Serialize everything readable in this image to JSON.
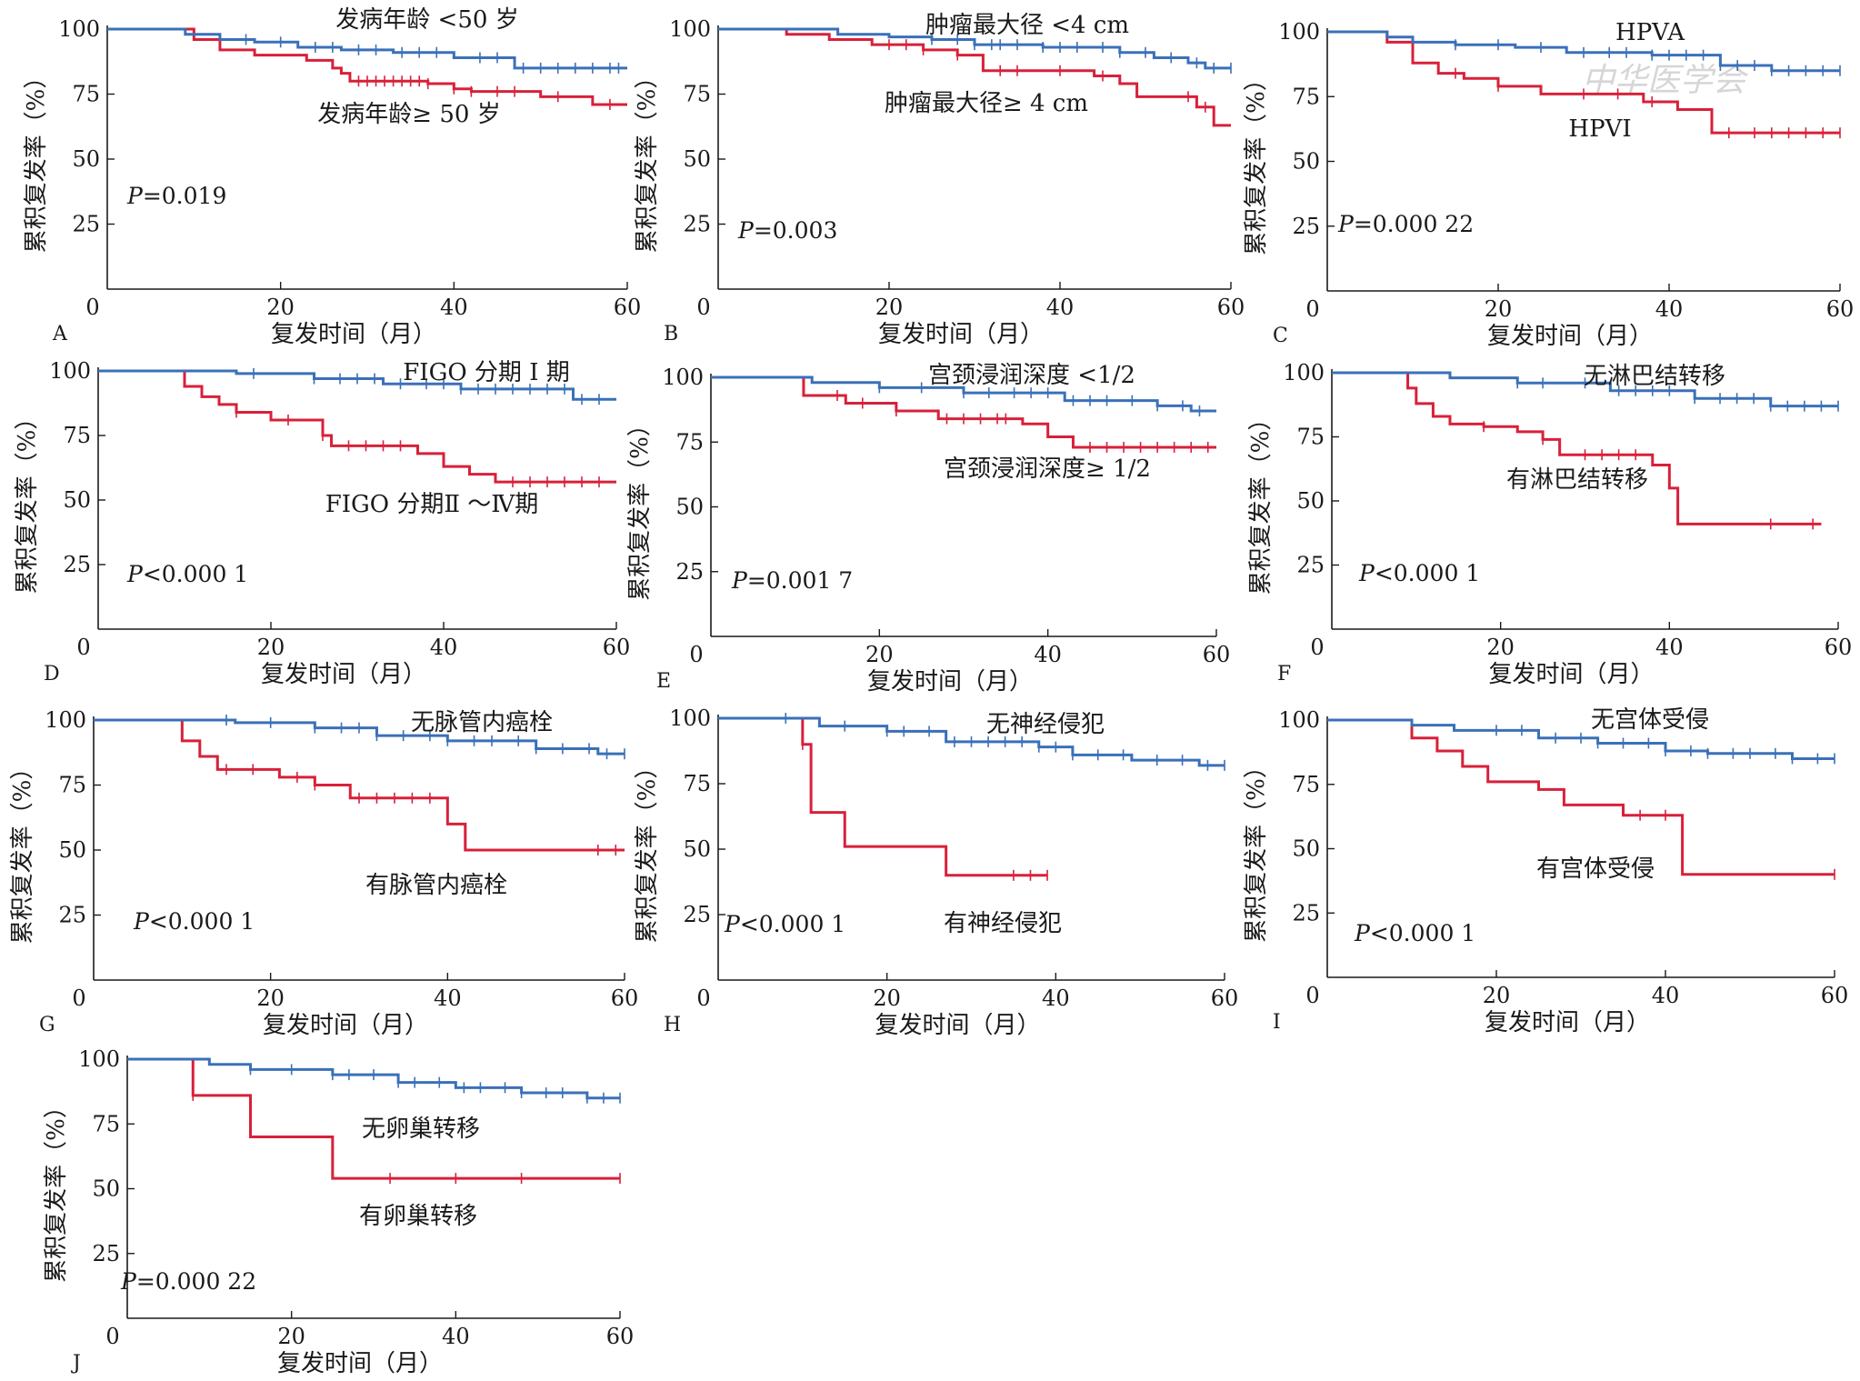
{
  "colors": {
    "favorable": "#3a70b8",
    "unfavorable": "#d8203a",
    "axis": "#1a1a1a"
  },
  "axes": {
    "x_ticks": [
      "0",
      "20",
      "40",
      "60"
    ],
    "y_ticks": [
      "25",
      "50",
      "75",
      "100"
    ],
    "xlabel": "复发时间（月）",
    "ylabel": "累积复发率（%）",
    "xlim": [
      0,
      60
    ],
    "ylim": [
      0,
      100
    ]
  },
  "watermark": "中华医学会",
  "chart_data": [
    {
      "type": "line",
      "letter": "A",
      "p_value": "=0.019",
      "series": [
        {
          "name": "发病年龄 <50 岁",
          "color": "#3a70b8",
          "x": [
            0,
            8,
            9,
            13,
            17,
            22,
            27,
            33,
            40,
            47,
            60
          ],
          "y": [
            100,
            100,
            98,
            96,
            95,
            93,
            92,
            91,
            89,
            85,
            85
          ],
          "censor": [
            16,
            20,
            24,
            26,
            29,
            31,
            34,
            36,
            38,
            43,
            45,
            48,
            50,
            52,
            54,
            56,
            58,
            59
          ]
        },
        {
          "name": "发病年龄≥ 50 岁",
          "color": "#d8203a",
          "x": [
            0,
            8,
            10,
            13,
            17,
            23,
            26,
            27,
            28,
            37,
            40,
            42,
            50,
            56,
            60
          ],
          "y": [
            100,
            100,
            96,
            92,
            90,
            88,
            85,
            83,
            80,
            79,
            77,
            76,
            74,
            71,
            71
          ],
          "censor": [
            29,
            30,
            31,
            32,
            33,
            34,
            35,
            36,
            37,
            40,
            42,
            45,
            47,
            52,
            58
          ]
        }
      ]
    },
    {
      "type": "line",
      "letter": "B",
      "p_value": "=0.003",
      "series": [
        {
          "name": "肿瘤最大径 <4 cm",
          "color": "#3a70b8",
          "x": [
            0,
            10,
            14,
            20,
            25,
            30,
            38,
            47,
            51,
            55,
            57,
            60
          ],
          "y": [
            100,
            100,
            98,
            97,
            96,
            94,
            93,
            91,
            89,
            87,
            85,
            85
          ],
          "censor": [
            25,
            28,
            30,
            32,
            33,
            35,
            38,
            40,
            42,
            45,
            47,
            50,
            53,
            56,
            58,
            60
          ]
        },
        {
          "name": "肿瘤最大径≥ 4 cm",
          "color": "#d8203a",
          "x": [
            0,
            4,
            8,
            13,
            18,
            24,
            28,
            31,
            44,
            47,
            49,
            56,
            58,
            60
          ],
          "y": [
            100,
            100,
            98,
            96,
            94,
            92,
            90,
            84,
            82,
            79,
            74,
            70,
            63,
            63
          ],
          "censor": [
            20,
            22,
            24,
            28,
            33,
            35,
            40,
            45,
            55,
            57
          ]
        }
      ]
    },
    {
      "type": "line",
      "letter": "C",
      "p_value": "=0.000 22",
      "series": [
        {
          "name": "HPVA",
          "color": "#3a70b8",
          "x": [
            0,
            5,
            7,
            10,
            15,
            22,
            28,
            38,
            46,
            52,
            60
          ],
          "y": [
            100,
            100,
            98,
            96,
            95,
            94,
            92,
            91,
            87,
            85,
            85
          ],
          "censor": [
            15,
            20,
            25,
            30,
            33,
            35,
            38,
            40,
            42,
            44,
            46,
            48,
            50,
            52,
            54,
            56,
            58,
            60
          ]
        },
        {
          "name": "HPVI",
          "color": "#d8203a",
          "x": [
            0,
            5,
            7,
            10,
            13,
            16,
            20,
            25,
            37,
            41,
            45,
            60
          ],
          "y": [
            100,
            100,
            96,
            88,
            84,
            82,
            79,
            76,
            73,
            70,
            61,
            61
          ],
          "censor": [
            15,
            20,
            30,
            34,
            38,
            47,
            50,
            52,
            54,
            56,
            58,
            60
          ]
        }
      ]
    },
    {
      "type": "line",
      "letter": "D",
      "p_value": "<0.000 1",
      "series": [
        {
          "name": "FIGO 分期 Ⅰ 期",
          "color": "#3a70b8",
          "x": [
            0,
            9,
            16,
            25,
            33,
            42,
            55,
            60
          ],
          "y": [
            100,
            100,
            99,
            97,
            95,
            93,
            89,
            89
          ],
          "censor": [
            18,
            25,
            28,
            30,
            32,
            35,
            38,
            40,
            42,
            44,
            46,
            48,
            50,
            52,
            54,
            56,
            58
          ]
        },
        {
          "name": "FIGO 分期Ⅱ ～Ⅳ期",
          "color": "#d8203a",
          "x": [
            0,
            8,
            10,
            12,
            14,
            16,
            20,
            26,
            27,
            37,
            40,
            43,
            46,
            60
          ],
          "y": [
            100,
            100,
            94,
            90,
            87,
            84,
            81,
            75,
            71,
            68,
            63,
            60,
            57,
            57
          ],
          "censor": [
            16,
            22,
            26,
            29,
            31,
            33,
            35,
            48,
            50,
            52,
            54,
            56,
            58
          ]
        }
      ]
    },
    {
      "type": "line",
      "letter": "E",
      "p_value": "=0.001 7",
      "series": [
        {
          "name": "宫颈浸润深度 <1/2",
          "color": "#3a70b8",
          "x": [
            0,
            7,
            12,
            20,
            30,
            42,
            53,
            57,
            60
          ],
          "y": [
            100,
            100,
            98,
            96,
            94,
            91,
            89,
            87,
            87
          ],
          "censor": [
            20,
            25,
            30,
            33,
            36,
            38,
            40,
            43,
            45,
            47,
            50,
            53,
            56,
            58
          ]
        },
        {
          "name": "宫颈浸润深度≥ 1/2",
          "color": "#d8203a",
          "x": [
            0,
            8,
            11,
            16,
            22,
            27,
            37,
            40,
            43,
            60
          ],
          "y": [
            100,
            100,
            93,
            90,
            87,
            84,
            82,
            77,
            73,
            73
          ],
          "censor": [
            15,
            18,
            22,
            28,
            30,
            32,
            34,
            35,
            45,
            47,
            49,
            51,
            53,
            55,
            57,
            59
          ]
        }
      ]
    },
    {
      "type": "line",
      "letter": "F",
      "p_value": "<0.000 1",
      "series": [
        {
          "name": "无淋巴结转移",
          "color": "#3a70b8",
          "x": [
            0,
            10,
            14,
            22,
            33,
            43,
            52,
            60
          ],
          "y": [
            100,
            100,
            98,
            96,
            93,
            90,
            87,
            87
          ],
          "censor": [
            22,
            25,
            30,
            34,
            36,
            38,
            40,
            43,
            46,
            48,
            50,
            52,
            54,
            56,
            58,
            60
          ]
        },
        {
          "name": "有淋巴结转移",
          "color": "#d8203a",
          "x": [
            0,
            8,
            9,
            10,
            12,
            14,
            18,
            22,
            25,
            27,
            38,
            40,
            41,
            58
          ],
          "y": [
            100,
            100,
            94,
            88,
            83,
            80,
            79,
            77,
            74,
            68,
            64,
            55,
            41,
            41
          ],
          "censor": [
            18,
            25,
            30,
            32,
            34,
            36,
            52,
            57
          ]
        }
      ]
    },
    {
      "type": "line",
      "letter": "G",
      "p_value": "<0.000 1",
      "series": [
        {
          "name": "无脉管内癌栓",
          "color": "#3a70b8",
          "x": [
            0,
            8,
            16,
            25,
            32,
            40,
            50,
            57,
            60
          ],
          "y": [
            100,
            100,
            99,
            97,
            94,
            92,
            89,
            87,
            87
          ],
          "censor": [
            15,
            20,
            25,
            28,
            30,
            32,
            35,
            38,
            40,
            43,
            45,
            48,
            50,
            53,
            56,
            58,
            60
          ]
        },
        {
          "name": "有脉管内癌栓",
          "color": "#d8203a",
          "x": [
            0,
            8,
            10,
            12,
            14,
            21,
            25,
            29,
            39,
            40,
            42,
            60
          ],
          "y": [
            100,
            100,
            92,
            86,
            81,
            78,
            75,
            70,
            70,
            60,
            50,
            50
          ],
          "censor": [
            15,
            18,
            23,
            25,
            30,
            32,
            34,
            36,
            38,
            57,
            59
          ]
        }
      ]
    },
    {
      "type": "line",
      "letter": "H",
      "p_value": "<0.000 1",
      "series": [
        {
          "name": "无神经侵犯",
          "color": "#3a70b8",
          "x": [
            0,
            8,
            12,
            20,
            27,
            38,
            42,
            49,
            57,
            60
          ],
          "y": [
            100,
            100,
            97,
            95,
            91,
            89,
            86,
            84,
            82,
            82
          ],
          "censor": [
            8,
            15,
            20,
            22,
            25,
            28,
            30,
            32,
            34,
            36,
            38,
            40,
            42,
            45,
            48,
            52,
            55,
            58,
            60
          ]
        },
        {
          "name": "有神经侵犯",
          "color": "#d8203a",
          "x": [
            0,
            8,
            10,
            11,
            15,
            27,
            39
          ],
          "y": [
            100,
            100,
            90,
            64,
            51,
            40,
            40
          ],
          "censor": [
            10,
            35,
            37,
            39
          ]
        }
      ]
    },
    {
      "type": "line",
      "letter": "I",
      "p_value": "<0.000 1",
      "series": [
        {
          "name": "无宫体受侵",
          "color": "#3a70b8",
          "x": [
            0,
            8,
            10,
            15,
            25,
            32,
            40,
            45,
            55,
            60
          ],
          "y": [
            100,
            100,
            98,
            96,
            93,
            91,
            88,
            87,
            85,
            85
          ],
          "censor": [
            20,
            23,
            27,
            30,
            32,
            35,
            38,
            40,
            43,
            45,
            48,
            50,
            53,
            55,
            58,
            60
          ]
        },
        {
          "name": "有宫体受侵",
          "color": "#d8203a",
          "x": [
            0,
            8,
            10,
            13,
            16,
            19,
            25,
            28,
            35,
            42,
            60
          ],
          "y": [
            100,
            100,
            93,
            88,
            82,
            76,
            73,
            67,
            63,
            40,
            40
          ],
          "censor": [
            37,
            40,
            60
          ]
        }
      ]
    },
    {
      "type": "line",
      "letter": "J",
      "p_value": "=0.000 22",
      "series": [
        {
          "name": "无卵巢转移",
          "color": "#3a70b8",
          "x": [
            0,
            8,
            10,
            15,
            25,
            33,
            40,
            48,
            56,
            60
          ],
          "y": [
            100,
            100,
            98,
            96,
            94,
            91,
            89,
            87,
            85,
            85
          ],
          "censor": [
            15,
            20,
            25,
            27,
            30,
            33,
            35,
            38,
            41,
            43,
            46,
            48,
            51,
            53,
            56,
            58,
            60
          ]
        },
        {
          "name": "有卵巢转移",
          "color": "#d8203a",
          "x": [
            0,
            7,
            8,
            15,
            25,
            60
          ],
          "y": [
            100,
            100,
            86,
            70,
            54,
            54
          ],
          "censor": [
            8,
            32,
            40,
            48,
            60
          ]
        }
      ]
    }
  ]
}
